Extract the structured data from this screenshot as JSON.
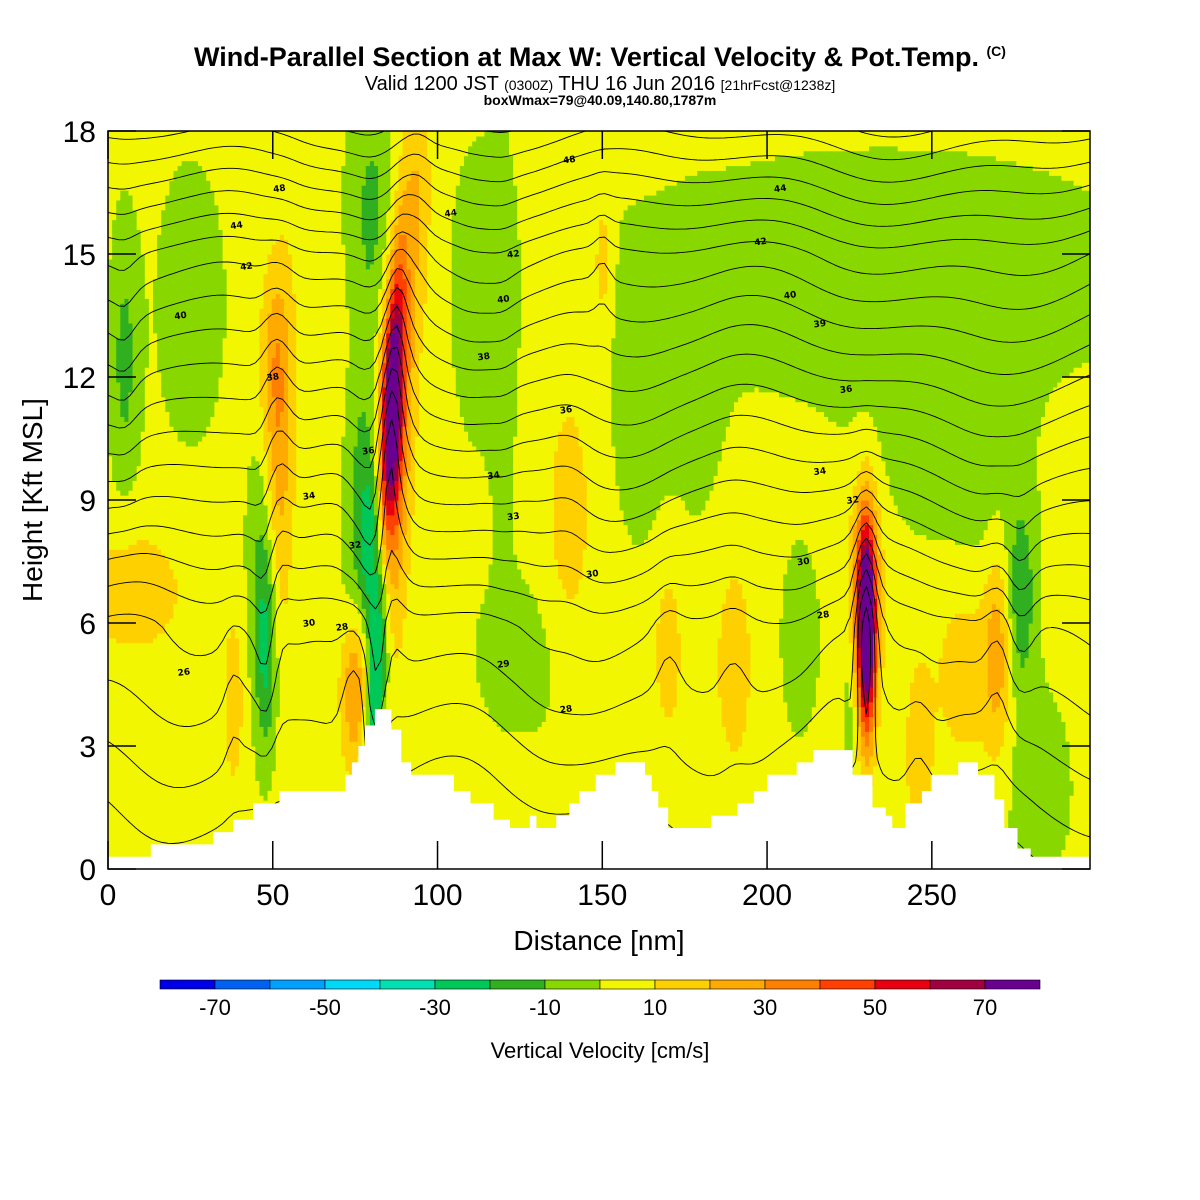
{
  "title": {
    "main": "Wind-Parallel Section at Max W: Vertical Velocity & Pot.Temp.",
    "main_suffix": "(C)",
    "valid_prefix": "Valid 1200 JST",
    "valid_zulu": "(0300Z)",
    "valid_date": "THU 16 Jun 2016",
    "forecast": "[21hrFcst@1238z]",
    "boxinfo": "boxWmax=79@40.09,140.80,1787m"
  },
  "chart_data": {
    "type": "heatmap",
    "xlabel": "Distance [nm]",
    "ylabel": "Height [Kft MSL]",
    "xlim": [
      0,
      298
    ],
    "ylim": [
      0,
      18
    ],
    "xticks": [
      0,
      50,
      100,
      150,
      200,
      250
    ],
    "yticks": [
      0,
      3,
      6,
      9,
      12,
      15,
      18
    ],
    "terrain_profile_kft": [
      [
        0,
        0.3
      ],
      [
        13,
        0.3
      ],
      [
        13,
        0.6
      ],
      [
        32,
        0.6
      ],
      [
        32,
        0.9
      ],
      [
        38,
        0.9
      ],
      [
        38,
        1.2
      ],
      [
        44,
        1.2
      ],
      [
        44,
        1.6
      ],
      [
        52,
        1.6
      ],
      [
        52,
        1.9
      ],
      [
        72,
        1.9
      ],
      [
        72,
        2.3
      ],
      [
        74,
        2.3
      ],
      [
        74,
        2.6
      ],
      [
        76,
        2.6
      ],
      [
        76,
        3.0
      ],
      [
        78,
        3.0
      ],
      [
        78,
        3.5
      ],
      [
        81,
        3.5
      ],
      [
        81,
        3.9
      ],
      [
        86,
        3.9
      ],
      [
        86,
        3.4
      ],
      [
        89,
        3.4
      ],
      [
        89,
        2.6
      ],
      [
        92,
        2.6
      ],
      [
        92,
        2.3
      ],
      [
        105,
        2.3
      ],
      [
        105,
        1.9
      ],
      [
        110,
        1.9
      ],
      [
        110,
        1.6
      ],
      [
        117,
        1.6
      ],
      [
        117,
        1.2
      ],
      [
        122,
        1.2
      ],
      [
        122,
        1.0
      ],
      [
        128,
        1.0
      ],
      [
        128,
        1.3
      ],
      [
        130,
        1.3
      ],
      [
        130,
        1.0
      ],
      [
        136,
        1.0
      ],
      [
        136,
        1.3
      ],
      [
        140,
        1.3
      ],
      [
        140,
        1.6
      ],
      [
        143,
        1.6
      ],
      [
        143,
        1.9
      ],
      [
        148,
        1.9
      ],
      [
        148,
        2.3
      ],
      [
        154,
        2.3
      ],
      [
        154,
        2.6
      ],
      [
        163,
        2.6
      ],
      [
        163,
        2.3
      ],
      [
        165,
        2.3
      ],
      [
        165,
        1.9
      ],
      [
        167,
        1.9
      ],
      [
        167,
        1.5
      ],
      [
        170,
        1.5
      ],
      [
        170,
        1.0
      ],
      [
        183,
        1.0
      ],
      [
        183,
        1.3
      ],
      [
        191,
        1.3
      ],
      [
        191,
        1.6
      ],
      [
        196,
        1.6
      ],
      [
        196,
        1.9
      ],
      [
        200,
        1.9
      ],
      [
        200,
        2.3
      ],
      [
        209,
        2.3
      ],
      [
        209,
        2.6
      ],
      [
        214,
        2.6
      ],
      [
        214,
        2.9
      ],
      [
        226,
        2.9
      ],
      [
        226,
        2.3
      ],
      [
        232,
        2.3
      ],
      [
        232,
        1.5
      ],
      [
        236,
        1.5
      ],
      [
        236,
        1.3
      ],
      [
        238,
        1.3
      ],
      [
        238,
        1.0
      ],
      [
        242,
        1.0
      ],
      [
        242,
        1.6
      ],
      [
        247,
        1.6
      ],
      [
        247,
        1.9
      ],
      [
        250,
        1.9
      ],
      [
        250,
        2.3
      ],
      [
        258,
        2.3
      ],
      [
        258,
        2.6
      ],
      [
        264,
        2.6
      ],
      [
        264,
        2.3
      ],
      [
        269,
        2.3
      ],
      [
        269,
        1.7
      ],
      [
        272,
        1.7
      ],
      [
        272,
        1.0
      ],
      [
        276,
        1.0
      ],
      [
        276,
        0.5
      ],
      [
        280,
        0.5
      ],
      [
        280,
        0.3
      ],
      [
        298,
        0.3
      ]
    ],
    "vertical_velocity": {
      "units": "cm/s",
      "colorbar_title": "Vertical Velocity [cm/s]",
      "colorbar_ticks": [
        -70,
        -50,
        -30,
        -10,
        10,
        30,
        50,
        70
      ],
      "bins": [
        {
          "min": -80,
          "max": -70,
          "color": "#0000e8"
        },
        {
          "min": -70,
          "max": -60,
          "color": "#0060f0"
        },
        {
          "min": -60,
          "max": -50,
          "color": "#00a0ff"
        },
        {
          "min": -50,
          "max": -40,
          "color": "#00d8f8"
        },
        {
          "min": -40,
          "max": -30,
          "color": "#00e0b0"
        },
        {
          "min": -30,
          "max": -20,
          "color": "#00c858"
        },
        {
          "min": -20,
          "max": -10,
          "color": "#30b020"
        },
        {
          "min": -10,
          "max": 0,
          "color": "#88d800"
        },
        {
          "min": 0,
          "max": 10,
          "color": "#f2f600"
        },
        {
          "min": 10,
          "max": 20,
          "color": "#ffd000"
        },
        {
          "min": 20,
          "max": 30,
          "color": "#ffaa00"
        },
        {
          "min": 30,
          "max": 40,
          "color": "#ff8000"
        },
        {
          "min": 40,
          "max": 50,
          "color": "#ff4000"
        },
        {
          "min": 50,
          "max": 60,
          "color": "#e80010"
        },
        {
          "min": 60,
          "max": 70,
          "color": "#a00040"
        },
        {
          "min": 70,
          "max": 80,
          "color": "#6a0090"
        }
      ],
      "background_value": 3,
      "features": [
        {
          "x": 86,
          "y": 11.2,
          "sx": 2.3,
          "sy": 2.6,
          "value": 72,
          "tilt": 0.55
        },
        {
          "x": 87,
          "y": 9.8,
          "sx": 3.6,
          "sy": 3.6,
          "value": 32,
          "tilt": 0.55
        },
        {
          "x": 82,
          "y": 5.4,
          "sx": 2.4,
          "sy": 2.6,
          "value": -48,
          "tilt": 0.6
        },
        {
          "x": 80,
          "y": 8.2,
          "sx": 2.6,
          "sy": 1.6,
          "value": -30,
          "tilt": 0.6
        },
        {
          "x": 76,
          "y": 9.5,
          "sx": 3.0,
          "sy": 3.0,
          "value": -14,
          "tilt": 0.6
        },
        {
          "x": 230,
          "y": 5.8,
          "sx": 2.0,
          "sy": 1.8,
          "value": 82
        },
        {
          "x": 230,
          "y": 6.8,
          "sx": 3.4,
          "sy": 1.8,
          "value": 28
        },
        {
          "x": 226,
          "y": 4.2,
          "sx": 2.2,
          "sy": 1.6,
          "value": -10
        },
        {
          "x": 52,
          "y": 9.8,
          "sx": 3.2,
          "sy": 3.4,
          "value": 22,
          "tilt": 0.3
        },
        {
          "x": 50,
          "y": 12.5,
          "sx": 3.0,
          "sy": 1.6,
          "value": 16
        },
        {
          "x": 48,
          "y": 5.2,
          "sx": 2.4,
          "sy": 1.8,
          "value": -26
        },
        {
          "x": 47,
          "y": 7.6,
          "sx": 3.2,
          "sy": 2.0,
          "value": -14
        },
        {
          "x": 75,
          "y": 4.4,
          "sx": 3.2,
          "sy": 1.4,
          "value": 30
        },
        {
          "x": 38,
          "y": 4.1,
          "sx": 2.2,
          "sy": 1.5,
          "value": 14
        },
        {
          "x": 80,
          "y": 16.3,
          "sx": 5.0,
          "sy": 2.0,
          "value": -14
        },
        {
          "x": 94,
          "y": 16.5,
          "sx": 3.0,
          "sy": 2.2,
          "value": 14
        },
        {
          "x": 5,
          "y": 12.4,
          "sx": 3.0,
          "sy": 2.2,
          "value": -16
        },
        {
          "x": 25,
          "y": 13.8,
          "sx": 9.0,
          "sy": 3.0,
          "value": -6
        },
        {
          "x": 112,
          "y": 14.0,
          "sx": 6.0,
          "sy": 3.0,
          "value": -6
        },
        {
          "x": 150,
          "y": 14.8,
          "sx": 2.0,
          "sy": 1.2,
          "value": 14
        },
        {
          "x": 162,
          "y": 10.5,
          "sx": 8.0,
          "sy": 2.5,
          "value": -5
        },
        {
          "x": 180,
          "y": 11.0,
          "sx": 6.0,
          "sy": 2.5,
          "value": -4
        },
        {
          "x": 235,
          "y": 14.5,
          "sx": 60,
          "sy": 2.2,
          "value": -8
        },
        {
          "x": 250,
          "y": 10.8,
          "sx": 15,
          "sy": 1.8,
          "value": -7
        },
        {
          "x": 265,
          "y": 8.5,
          "sx": 10,
          "sy": 2.8,
          "value": -6
        },
        {
          "x": 277,
          "y": 6.6,
          "sx": 3.0,
          "sy": 1.6,
          "value": -20
        },
        {
          "x": 282,
          "y": 2.0,
          "sx": 8.0,
          "sy": 1.8,
          "value": -7
        },
        {
          "x": 260,
          "y": 5.0,
          "sx": 7.0,
          "sy": 1.8,
          "value": 14
        },
        {
          "x": 270,
          "y": 5.4,
          "sx": 3.0,
          "sy": 1.8,
          "value": 22
        },
        {
          "x": 190,
          "y": 5.0,
          "sx": 4.0,
          "sy": 1.8,
          "value": 14
        },
        {
          "x": 170,
          "y": 5.4,
          "sx": 3.0,
          "sy": 1.5,
          "value": 14
        },
        {
          "x": 210,
          "y": 5.6,
          "sx": 5.0,
          "sy": 2.0,
          "value": -6
        },
        {
          "x": 128,
          "y": 5.2,
          "sx": 14,
          "sy": 1.6,
          "value": -6
        },
        {
          "x": 140,
          "y": 8.5,
          "sx": 5.0,
          "sy": 2.5,
          "value": 13
        },
        {
          "x": 120,
          "y": 12.5,
          "sx": 3.0,
          "sy": 4.0,
          "value": -5
        },
        {
          "x": 246,
          "y": 2.8,
          "sx": 3.0,
          "sy": 1.6,
          "value": 14
        },
        {
          "x": 8,
          "y": 6.8,
          "sx": 12,
          "sy": 1.2,
          "value": 13
        }
      ]
    },
    "potential_temperature": {
      "units": "C",
      "base_profile_kft": [
        [
          0,
          25
        ],
        [
          3,
          27
        ],
        [
          6,
          29
        ],
        [
          9,
          33
        ],
        [
          12,
          37
        ],
        [
          15,
          41
        ],
        [
          18,
          46.5
        ]
      ],
      "contour_levels": [
        20,
        21,
        22,
        23,
        24,
        25,
        26,
        27,
        28,
        29,
        30,
        31,
        32,
        33,
        34,
        35,
        36,
        37,
        38,
        39,
        40,
        41,
        42,
        43,
        44,
        45,
        46,
        47,
        48
      ],
      "labels": [
        {
          "value": "48",
          "x": 52,
          "y": 16.6
        },
        {
          "value": "44",
          "x": 39,
          "y": 15.7
        },
        {
          "value": "42",
          "x": 42,
          "y": 14.7
        },
        {
          "value": "40",
          "x": 22,
          "y": 13.5
        },
        {
          "value": "38",
          "x": 50,
          "y": 12.0
        },
        {
          "value": "36",
          "x": 79,
          "y": 10.2
        },
        {
          "value": "34",
          "x": 61,
          "y": 9.1
        },
        {
          "value": "32",
          "x": 75,
          "y": 7.9
        },
        {
          "value": "30",
          "x": 61,
          "y": 6.0
        },
        {
          "value": "28",
          "x": 71,
          "y": 5.9
        },
        {
          "value": "26",
          "x": 23,
          "y": 4.8
        },
        {
          "value": "48",
          "x": 140,
          "y": 17.3
        },
        {
          "value": "44",
          "x": 104,
          "y": 16.0
        },
        {
          "value": "42",
          "x": 123,
          "y": 15.0
        },
        {
          "value": "40",
          "x": 120,
          "y": 13.9
        },
        {
          "value": "38",
          "x": 114,
          "y": 12.5
        },
        {
          "value": "36",
          "x": 139,
          "y": 11.2
        },
        {
          "value": "34",
          "x": 117,
          "y": 9.6
        },
        {
          "value": "33",
          "x": 123,
          "y": 8.6
        },
        {
          "value": "30",
          "x": 147,
          "y": 7.2
        },
        {
          "value": "29",
          "x": 120,
          "y": 5.0
        },
        {
          "value": "28",
          "x": 139,
          "y": 3.9
        },
        {
          "value": "44",
          "x": 204,
          "y": 16.6
        },
        {
          "value": "42",
          "x": 198,
          "y": 15.3
        },
        {
          "value": "40",
          "x": 207,
          "y": 14.0
        },
        {
          "value": "39",
          "x": 216,
          "y": 13.3
        },
        {
          "value": "36",
          "x": 224,
          "y": 11.7
        },
        {
          "value": "34",
          "x": 216,
          "y": 9.7
        },
        {
          "value": "32",
          "x": 226,
          "y": 9.0
        },
        {
          "value": "30",
          "x": 211,
          "y": 7.5
        },
        {
          "value": "28",
          "x": 217,
          "y": 6.2
        }
      ]
    }
  }
}
